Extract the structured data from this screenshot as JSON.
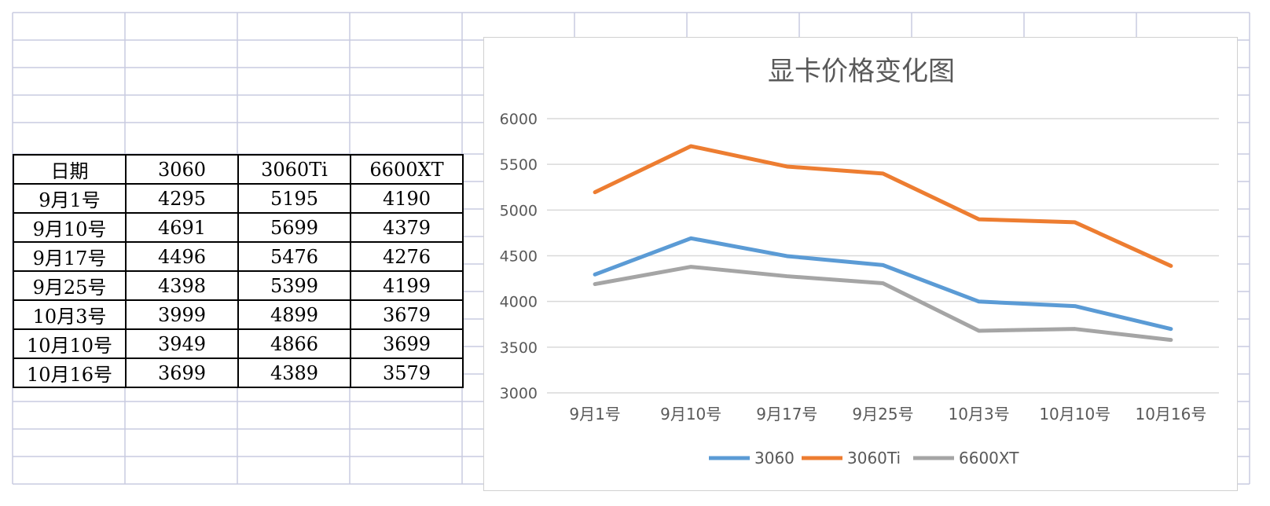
{
  "table": {
    "header": [
      "日期",
      "3060",
      "3060Ti",
      "6600XT"
    ],
    "rows": [
      [
        "9月1号",
        "4295",
        "5195",
        "4190"
      ],
      [
        "9月10号",
        "4691",
        "5699",
        "4379"
      ],
      [
        "9月17号",
        "4496",
        "5476",
        "4276"
      ],
      [
        "9月25号",
        "4398",
        "5399",
        "4199"
      ],
      [
        "10月3号",
        "3999",
        "4899",
        "3679"
      ],
      [
        "10月10号",
        "3949",
        "4866",
        "3699"
      ],
      [
        "10月16号",
        "3699",
        "4389",
        "3579"
      ]
    ]
  },
  "chart_data": {
    "type": "line",
    "title": "显卡价格变化图",
    "categories": [
      "9月1号",
      "9月10号",
      "9月17号",
      "9月25号",
      "10月3号",
      "10月10号",
      "10月16号"
    ],
    "series": [
      {
        "name": "3060",
        "color": "#5b9bd5",
        "values": [
          4295,
          4691,
          4496,
          4398,
          3999,
          3949,
          3699
        ]
      },
      {
        "name": "3060Ti",
        "color": "#ed7d31",
        "values": [
          5195,
          5699,
          5476,
          5399,
          4899,
          4866,
          4389
        ]
      },
      {
        "name": "6600XT",
        "color": "#a5a5a5",
        "values": [
          4190,
          4379,
          4276,
          4199,
          3679,
          3699,
          3579
        ]
      }
    ],
    "ylim": [
      3000,
      6000
    ],
    "yticks": [
      "3000",
      "3500",
      "4000",
      "4500",
      "5000",
      "5500",
      "6000"
    ],
    "grid": true,
    "legend_position": "bottom"
  }
}
